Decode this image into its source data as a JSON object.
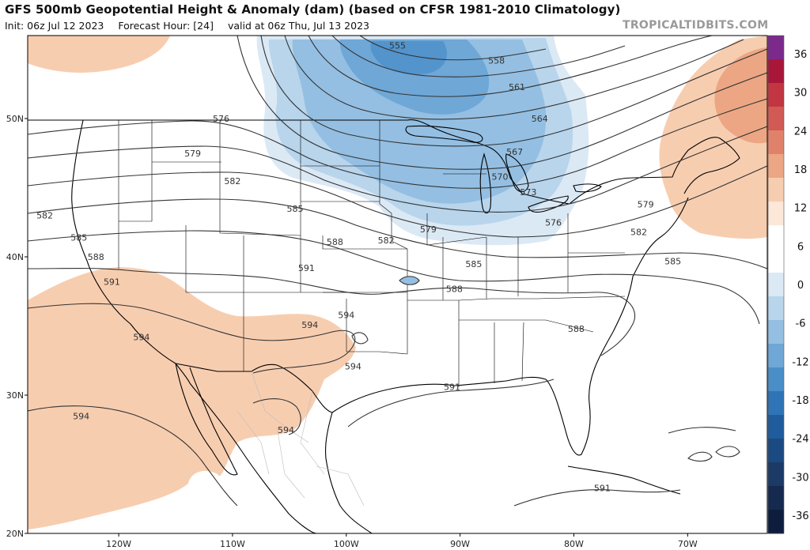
{
  "header": {
    "title": "GFS 500mb Geopotential Height & Anomaly (dam) (based on CFSR 1981-2010 Climatology)",
    "init": "Init: 06z Jul 12 2023",
    "forecast_hour": "Forecast Hour: [24]",
    "valid": "valid at 06z Thu, Jul 13 2023",
    "site": "TROPICALTIDBITS.COM"
  },
  "map": {
    "lon_range": [
      -128,
      -63
    ],
    "lat_range": [
      20,
      56
    ],
    "lon_ticks": [
      {
        "lon": -120,
        "label": "120W"
      },
      {
        "lon": -110,
        "label": "110W"
      },
      {
        "lon": -100,
        "label": "100W"
      },
      {
        "lon": -90,
        "label": "90W"
      },
      {
        "lon": -80,
        "label": "80W"
      },
      {
        "lon": -70,
        "label": "70W"
      }
    ],
    "lat_ticks": [
      {
        "lat": 50,
        "label": "50N"
      },
      {
        "lat": 40,
        "label": "40N"
      },
      {
        "lat": 30,
        "label": "30N"
      },
      {
        "lat": 20,
        "label": "20N"
      }
    ],
    "contour_labels": [
      {
        "lon": -95.5,
        "lat": 55.3,
        "text": "555"
      },
      {
        "lon": -86.8,
        "lat": 54.2,
        "text": "558"
      },
      {
        "lon": -85.0,
        "lat": 52.3,
        "text": "561"
      },
      {
        "lon": -83.0,
        "lat": 50.0,
        "text": "564"
      },
      {
        "lon": -85.2,
        "lat": 47.6,
        "text": "567"
      },
      {
        "lon": -86.5,
        "lat": 45.8,
        "text": "570"
      },
      {
        "lon": -84.0,
        "lat": 44.7,
        "text": "573"
      },
      {
        "lon": -81.8,
        "lat": 42.5,
        "text": "576"
      },
      {
        "lon": -111.0,
        "lat": 50.0,
        "text": "576"
      },
      {
        "lon": -113.5,
        "lat": 47.5,
        "text": "579"
      },
      {
        "lon": -110.0,
        "lat": 45.5,
        "text": "582"
      },
      {
        "lon": -104.5,
        "lat": 43.5,
        "text": "585"
      },
      {
        "lon": -101.0,
        "lat": 41.1,
        "text": "588"
      },
      {
        "lon": -103.5,
        "lat": 39.2,
        "text": "591"
      },
      {
        "lon": -126.5,
        "lat": 43.0,
        "text": "582"
      },
      {
        "lon": -123.5,
        "lat": 41.4,
        "text": "585"
      },
      {
        "lon": -122.0,
        "lat": 40.0,
        "text": "588"
      },
      {
        "lon": -120.6,
        "lat": 38.2,
        "text": "591"
      },
      {
        "lon": -118.0,
        "lat": 34.2,
        "text": "594"
      },
      {
        "lon": -103.2,
        "lat": 35.1,
        "text": "594"
      },
      {
        "lon": -99.4,
        "lat": 32.1,
        "text": "594"
      },
      {
        "lon": -100.0,
        "lat": 35.8,
        "text": "594"
      },
      {
        "lon": -123.3,
        "lat": 28.5,
        "text": "594"
      },
      {
        "lon": -105.3,
        "lat": 27.5,
        "text": "594"
      },
      {
        "lon": -92.8,
        "lat": 42.0,
        "text": "579"
      },
      {
        "lon": -96.5,
        "lat": 41.2,
        "text": "582"
      },
      {
        "lon": -88.8,
        "lat": 39.5,
        "text": "585"
      },
      {
        "lon": -90.5,
        "lat": 37.7,
        "text": "588"
      },
      {
        "lon": -90.7,
        "lat": 30.6,
        "text": "591"
      },
      {
        "lon": -79.8,
        "lat": 34.8,
        "text": "588"
      },
      {
        "lon": -71.3,
        "lat": 39.7,
        "text": "585"
      },
      {
        "lon": -74.3,
        "lat": 41.8,
        "text": "582"
      },
      {
        "lon": -73.7,
        "lat": 43.8,
        "text": "579"
      },
      {
        "lon": -77.5,
        "lat": 23.3,
        "text": "591"
      }
    ]
  },
  "colorbar": {
    "labels": [
      "36",
      "30",
      "24",
      "18",
      "12",
      "6",
      "0",
      "-6",
      "-12",
      "-18",
      "-24",
      "-30",
      "-36"
    ],
    "colors": [
      "#7b2a8c",
      "#a8173a",
      "#c23642",
      "#d25a55",
      "#e0826b",
      "#eca684",
      "#f7cdb0",
      "#fce7d8",
      "#ffffff",
      "#ffffff",
      "#dbe9f5",
      "#b8d5ec",
      "#94bfe2",
      "#6fa7d6",
      "#4a8ec8",
      "#2f74b6",
      "#1f5c9e",
      "#1b4a83",
      "#1c3a66",
      "#162a4f",
      "#0e1d3d"
    ]
  }
}
